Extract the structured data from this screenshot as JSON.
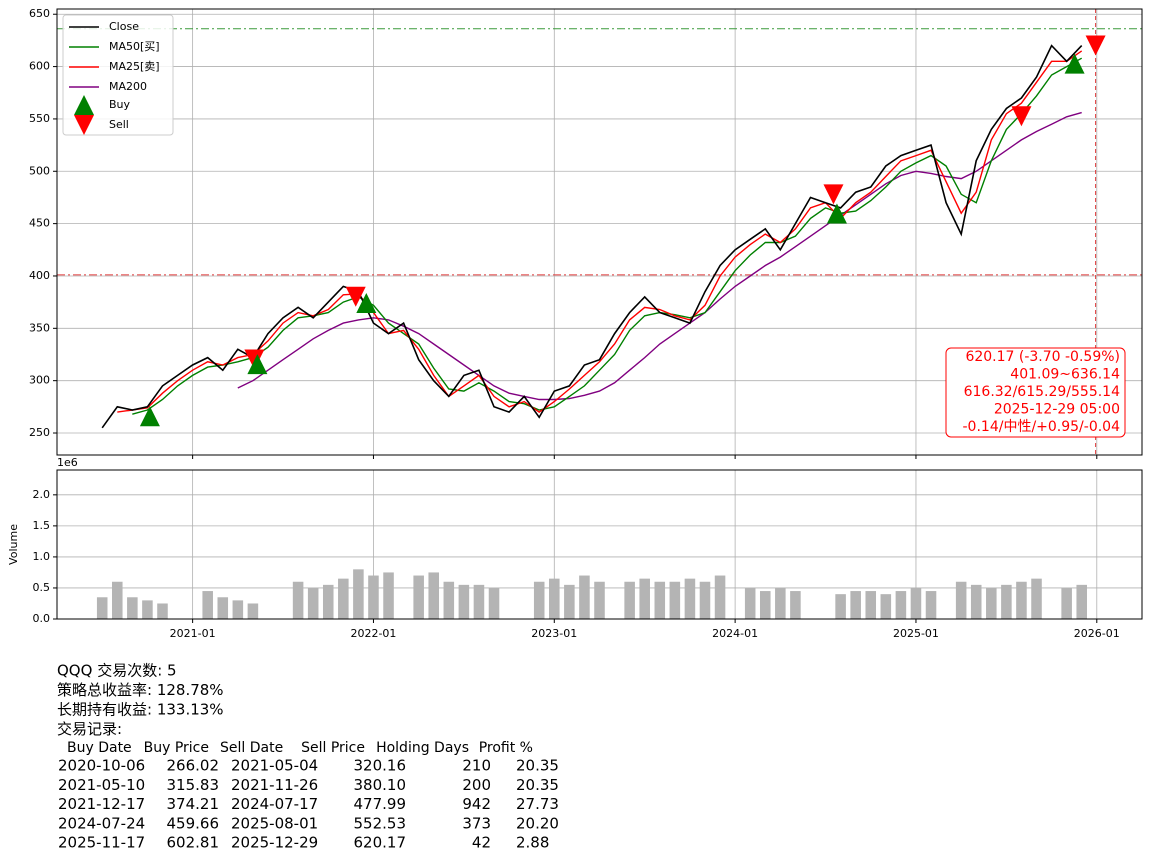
{
  "chart_data": [
    {
      "type": "line",
      "x": [
        "2020-07",
        "2020-08",
        "2020-09",
        "2020-10",
        "2020-11",
        "2020-12",
        "2021-01",
        "2021-02",
        "2021-03",
        "2021-04",
        "2021-05",
        "2021-06",
        "2021-07",
        "2021-08",
        "2021-09",
        "2021-10",
        "2021-11",
        "2021-12",
        "2022-01",
        "2022-02",
        "2022-03",
        "2022-04",
        "2022-05",
        "2022-06",
        "2022-07",
        "2022-08",
        "2022-09",
        "2022-10",
        "2022-11",
        "2022-12",
        "2023-01",
        "2023-02",
        "2023-03",
        "2023-04",
        "2023-05",
        "2023-06",
        "2023-07",
        "2023-08",
        "2023-09",
        "2023-10",
        "2023-11",
        "2023-12",
        "2024-01",
        "2024-02",
        "2024-03",
        "2024-04",
        "2024-05",
        "2024-06",
        "2024-07",
        "2024-08",
        "2024-09",
        "2024-10",
        "2024-11",
        "2024-12",
        "2025-01",
        "2025-02",
        "2025-03",
        "2025-04",
        "2025-05",
        "2025-06",
        "2025-07",
        "2025-08",
        "2025-09",
        "2025-10",
        "2025-11",
        "2025-12"
      ],
      "series": [
        {
          "name": "Close",
          "color": "#000000",
          "values": [
            255,
            275,
            272,
            275,
            295,
            305,
            315,
            322,
            310,
            330,
            322,
            345,
            360,
            370,
            360,
            375,
            390,
            385,
            355,
            345,
            355,
            320,
            300,
            285,
            305,
            310,
            275,
            270,
            285,
            265,
            290,
            295,
            315,
            320,
            345,
            365,
            380,
            365,
            360,
            355,
            385,
            410,
            425,
            435,
            445,
            425,
            450,
            475,
            470,
            465,
            480,
            485,
            505,
            515,
            520,
            525,
            470,
            440,
            510,
            540,
            560,
            570,
            590,
            620,
            605,
            620
          ]
        },
        {
          "name": "MA50[买]",
          "color": "#008000",
          "values": [
            null,
            null,
            268,
            272,
            282,
            295,
            305,
            313,
            315,
            318,
            322,
            332,
            348,
            360,
            362,
            365,
            375,
            380,
            372,
            355,
            345,
            335,
            312,
            292,
            290,
            298,
            290,
            280,
            278,
            272,
            275,
            285,
            295,
            310,
            325,
            348,
            362,
            365,
            363,
            360,
            365,
            385,
            405,
            420,
            432,
            432,
            438,
            455,
            465,
            460,
            462,
            472,
            485,
            500,
            508,
            515,
            505,
            478,
            470,
            510,
            540,
            555,
            572,
            592,
            600,
            608
          ]
        },
        {
          "name": "MA25[卖]",
          "color": "#ff0000",
          "values": [
            null,
            270,
            272,
            274,
            288,
            300,
            310,
            318,
            315,
            322,
            325,
            338,
            355,
            365,
            362,
            368,
            382,
            383,
            365,
            345,
            348,
            330,
            305,
            285,
            295,
            305,
            285,
            275,
            280,
            270,
            280,
            292,
            305,
            318,
            335,
            358,
            370,
            368,
            362,
            358,
            372,
            400,
            418,
            430,
            440,
            432,
            445,
            465,
            470,
            455,
            470,
            480,
            495,
            510,
            515,
            520,
            490,
            460,
            480,
            530,
            555,
            565,
            585,
            605,
            605,
            615
          ]
        },
        {
          "name": "MA200",
          "color": "#800080",
          "values": [
            null,
            null,
            null,
            null,
            null,
            null,
            null,
            null,
            null,
            293,
            300,
            310,
            320,
            330,
            340,
            348,
            355,
            358,
            360,
            358,
            352,
            345,
            335,
            325,
            315,
            305,
            295,
            288,
            285,
            282,
            282,
            283,
            286,
            290,
            298,
            310,
            322,
            335,
            345,
            355,
            365,
            378,
            390,
            400,
            410,
            418,
            428,
            438,
            448,
            458,
            468,
            478,
            488,
            496,
            500,
            498,
            495,
            493,
            500,
            510,
            520,
            530,
            538,
            545,
            552,
            556
          ]
        }
      ],
      "buy": {
        "name": "Buy",
        "color": "#008000"
      },
      "sell": {
        "name": "Sell",
        "color": "#ff0000"
      },
      "xlim": [
        "2020-04",
        "2026-04"
      ],
      "xticks": [
        "2021-01",
        "2022-01",
        "2023-01",
        "2024-01",
        "2025-01",
        "2026-01"
      ],
      "ylim": [
        229,
        655
      ],
      "yticks": [
        250,
        300,
        350,
        400,
        450,
        500,
        550,
        600,
        650
      ],
      "grid": true,
      "legend": "upper left",
      "hlines": [
        {
          "value": 401.09,
          "color": "#e03c3c"
        },
        {
          "value": 636.14,
          "color": "#3a9a3a"
        }
      ],
      "vline": "2025-12-29",
      "annotation": [
        "620.17 (-3.70 -0.59%)",
        "401.09~636.14",
        "616.32/615.29/555.14",
        "2025-12-29 05:00",
        "-0.14/中性/+0.95/-0.04"
      ]
    },
    {
      "type": "bar",
      "x": [
        "2020-07",
        "2020-08",
        "2020-09",
        "2020-10",
        "2020-11",
        "2020-12",
        "2021-01",
        "2021-02",
        "2021-03",
        "2021-04",
        "2021-05",
        "2021-06",
        "2021-07",
        "2021-08",
        "2021-09",
        "2021-10",
        "2021-11",
        "2021-12",
        "2022-01",
        "2022-02",
        "2022-03",
        "2022-04",
        "2022-05",
        "2022-06",
        "2022-07",
        "2022-08",
        "2022-09",
        "2022-10",
        "2022-11",
        "2022-12",
        "2023-01",
        "2023-02",
        "2023-03",
        "2023-04",
        "2023-05",
        "2023-06",
        "2023-07",
        "2023-08",
        "2023-09",
        "2023-10",
        "2023-11",
        "2023-12",
        "2024-01",
        "2024-02",
        "2024-03",
        "2024-04",
        "2024-05",
        "2024-06",
        "2024-07",
        "2024-08",
        "2024-09",
        "2024-10",
        "2024-11",
        "2024-12",
        "2025-01",
        "2025-02",
        "2025-03",
        "2025-04",
        "2025-05",
        "2025-06",
        "2025-07",
        "2025-08",
        "2025-09",
        "2025-10",
        "2025-11",
        "2025-12"
      ],
      "values": [
        0.35,
        0.6,
        0.35,
        0.3,
        0.25,
        null,
        null,
        0.45,
        0.35,
        0.3,
        0.25,
        null,
        null,
        0.6,
        0.5,
        0.55,
        0.65,
        0.8,
        0.7,
        0.75,
        null,
        0.7,
        0.75,
        0.6,
        0.55,
        0.55,
        0.5,
        null,
        null,
        0.6,
        0.65,
        0.55,
        0.7,
        0.6,
        null,
        0.6,
        0.65,
        0.6,
        0.6,
        0.65,
        0.6,
        0.7,
        null,
        0.5,
        0.45,
        0.5,
        0.45,
        null,
        null,
        0.4,
        0.45,
        0.45,
        0.4,
        0.45,
        0.5,
        0.45,
        null,
        0.6,
        0.55,
        0.5,
        0.55,
        0.6,
        0.65,
        null,
        0.5,
        0.55
      ],
      "color": "#b4b4b4",
      "y_label": "Volume",
      "offset_label": "1e6",
      "xlim": [
        "2020-04",
        "2026-04"
      ],
      "xticks": [
        "2021-01",
        "2022-01",
        "2023-01",
        "2024-01",
        "2025-01",
        "2026-01"
      ],
      "ylim": [
        0,
        2.4
      ],
      "yticks": [
        {
          "value": 0,
          "label": "0.0"
        },
        {
          "value": 0.5,
          "label": "0.5"
        },
        {
          "value": 1,
          "label": "1.0"
        },
        {
          "value": 1.5,
          "label": "1.5"
        },
        {
          "value": 2,
          "label": "2.0"
        }
      ],
      "grid": true
    }
  ],
  "report": {
    "summary": [
      "QQQ 交易次数: 5",
      "策略总收益率: 128.78%",
      "长期持有收益: 133.13%",
      "交易记录:"
    ],
    "trades": {
      "columns": [
        "Buy Date",
        "Buy Price",
        "Sell Date",
        "Sell Price",
        "Holding Days",
        "Profit %"
      ],
      "rows": [
        [
          "2020-10-06",
          "266.02",
          "2021-05-04",
          "320.16",
          "210",
          "20.35"
        ],
        [
          "2021-05-10",
          "315.83",
          "2021-11-26",
          "380.10",
          "200",
          "20.35"
        ],
        [
          "2021-12-17",
          "374.21",
          "2024-07-17",
          "477.99",
          "942",
          "27.73"
        ],
        [
          "2024-07-24",
          "459.66",
          "2025-08-01",
          "552.53",
          "373",
          "20.20"
        ],
        [
          "2025-11-17",
          "602.81",
          "2025-12-29",
          "620.17",
          "42",
          "2.88"
        ]
      ]
    }
  }
}
